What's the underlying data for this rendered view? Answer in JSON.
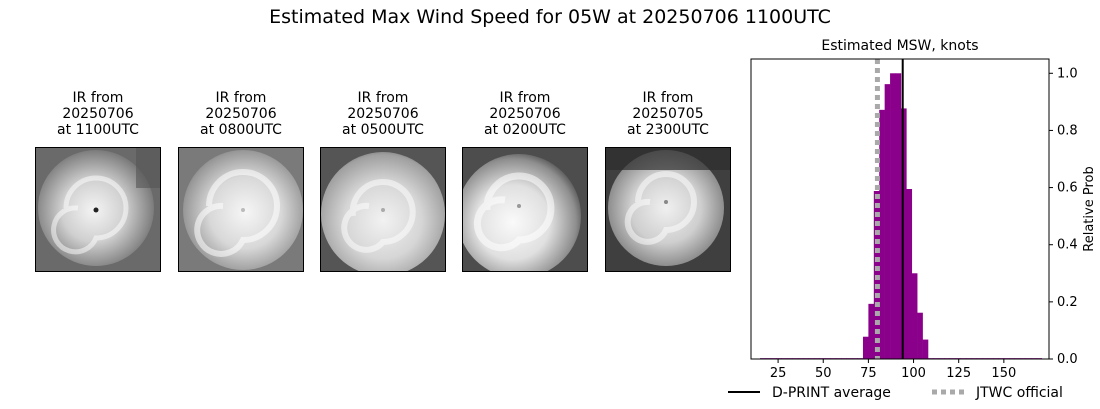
{
  "title": "Estimated Max Wind Speed for 05W at 20250706 1100UTC",
  "panels": [
    {
      "caption": "IR from\n20250706\nat 1100UTC",
      "icon": "satellite-ir-image"
    },
    {
      "caption": "IR from\n20250706\nat 0800UTC",
      "icon": "satellite-ir-image"
    },
    {
      "caption": "IR from\n20250706\nat 0500UTC",
      "icon": "satellite-ir-image"
    },
    {
      "caption": "IR from\n20250706\nat 0200UTC",
      "icon": "satellite-ir-image"
    },
    {
      "caption": "IR from\n20250705\nat 2300UTC",
      "icon": "satellite-ir-image"
    }
  ],
  "chart_data": {
    "type": "bar",
    "title": "Estimated MSW, knots",
    "xlabel": "",
    "ylabel": "Relative Prob",
    "xlim": [
      10,
      175
    ],
    "ylim": [
      0,
      1.05
    ],
    "xticks": [
      25,
      50,
      75,
      100,
      125,
      150
    ],
    "yticks": [
      0.0,
      0.2,
      0.4,
      0.6,
      0.8,
      1.0
    ],
    "ytick_labels": [
      "0.0",
      "0.2",
      "0.4",
      "0.6",
      "0.8",
      "1.0"
    ],
    "yaxis_side": "right",
    "bar_color": "#8b008b",
    "bins": {
      "start": 15,
      "width": 3,
      "values": [
        0.003,
        0.003,
        0.003,
        0.003,
        0.003,
        0.003,
        0.003,
        0.003,
        0.003,
        0.003,
        0.003,
        0.003,
        0.003,
        0.003,
        0.003,
        0.003,
        0.003,
        0.003,
        0.003,
        0.078,
        0.193,
        0.588,
        0.872,
        0.962,
        1.0,
        1.0,
        0.877,
        0.595,
        0.3,
        0.162,
        0.068,
        0.003,
        0.003,
        0.003,
        0.003,
        0.003,
        0.003,
        0.003,
        0.003,
        0.003,
        0.003,
        0.003,
        0.003,
        0.003,
        0.003,
        0.003,
        0.003,
        0.003,
        0.003,
        0.003,
        0.003,
        0.003
      ]
    },
    "lines": [
      {
        "name": "D-PRINT average",
        "x": 94,
        "color": "#000000",
        "style": "solid"
      },
      {
        "name": "JTWC official",
        "x": 80,
        "color": "#a9a9a9",
        "style": "dotted"
      }
    ],
    "legend_position": "bottom"
  }
}
